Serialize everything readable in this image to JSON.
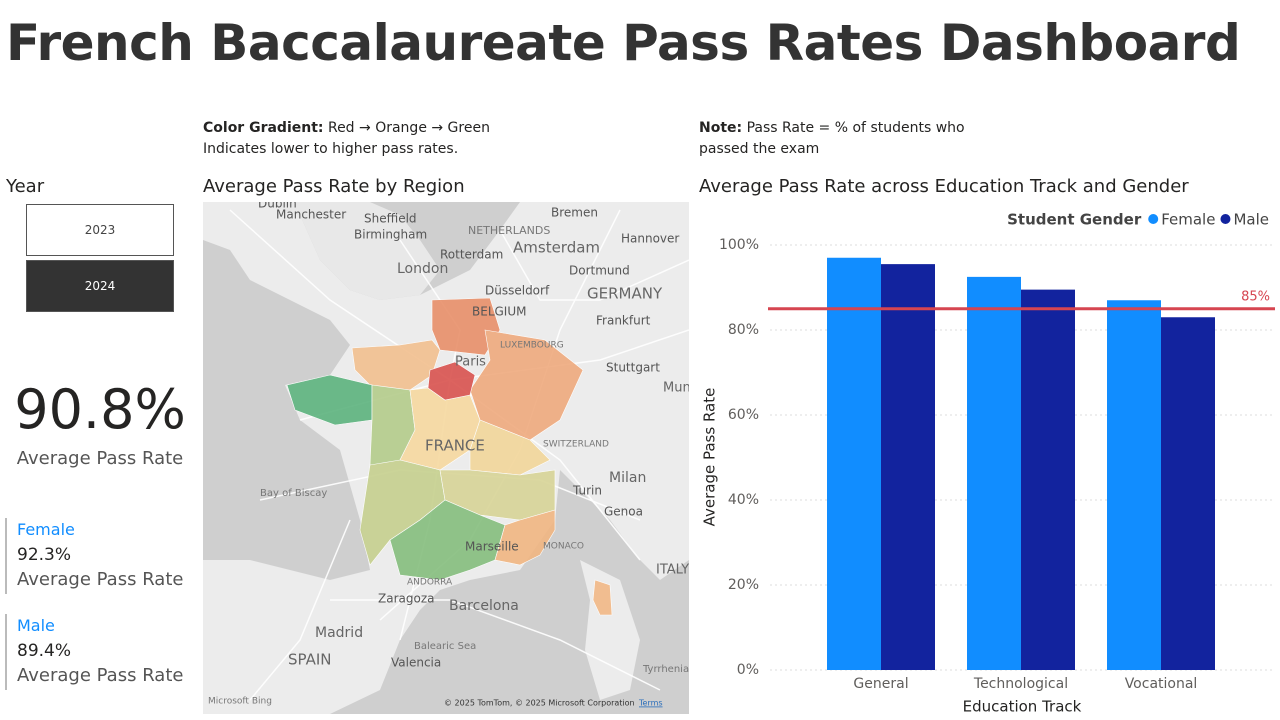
{
  "header": {
    "title": "French Baccalaureate Pass Rates Dashboard"
  },
  "notes": {
    "gradient_bold": "Color Gradient:",
    "gradient_text": "Red → Orange → Green",
    "gradient_line2": "Indicates lower to higher pass rates.",
    "note_bold": "Note:",
    "note_text": "Pass Rate = % of students who",
    "note_line2": "passed the exam"
  },
  "slicer": {
    "title": "Year",
    "options": [
      "2023",
      "2024"
    ]
  },
  "kpi": {
    "value": "90.8%",
    "label": "Average Pass Rate"
  },
  "gender_cards": [
    {
      "name": "Female",
      "value": "92.3%",
      "label": "Average Pass Rate"
    },
    {
      "name": "Male",
      "value": "89.4%",
      "label": "Average Pass Rate"
    }
  ],
  "map": {
    "title": "Average Pass Rate by Region",
    "labels": [
      "Dublin",
      "Manchester",
      "Sheffield",
      "Birmingham",
      "NETHERLANDS",
      "Amsterdam",
      "Rotterdam",
      "Bremen",
      "Hannover",
      "London",
      "Dortmund",
      "Düsseldorf",
      "GERMANY",
      "BELGIUM",
      "Frankfurt",
      "LUXEMBOURG",
      "Paris",
      "Stuttgart",
      "Mun",
      "FRANCE",
      "SWITZERLAND",
      "Milan",
      "Bay of Biscay",
      "Turin",
      "Genoa",
      "Marseille",
      "MONACO",
      "ITALY",
      "ANDORRA",
      "Zaragoza",
      "Barcelona",
      "Madrid",
      "Balearic Sea",
      "SPAIN",
      "Valencia",
      "Tyrrhenian",
      "Microsoft Bing",
      "© 2025 TomTom, © 2025 Microsoft Corporation",
      "Terms"
    ]
  },
  "chart_data": {
    "type": "bar",
    "title": "Average Pass Rate across Education Track and Gender",
    "legend_title": "Student Gender",
    "legend": "top-right",
    "x_label": "Education Track",
    "y_label": "Average Pass Rate",
    "categories": [
      "General",
      "Technological",
      "Vocational"
    ],
    "series": [
      {
        "name": "Female",
        "color": "#118DFF",
        "values": [
          97,
          92.5,
          87
        ]
      },
      {
        "name": "Male",
        "color": "#12239E",
        "values": [
          95.5,
          89.5,
          83
        ]
      }
    ],
    "ylim": [
      0,
      100
    ],
    "yticks": [
      {
        "value": 0,
        "label": "0%"
      },
      {
        "value": 20,
        "label": "20%"
      },
      {
        "value": 40,
        "label": "40%"
      },
      {
        "value": 60,
        "label": "60%"
      },
      {
        "value": 80,
        "label": "80%"
      },
      {
        "value": 100,
        "label": "100%"
      }
    ],
    "grid": true,
    "reference_line": {
      "value": 85,
      "label": "85%",
      "color": "#D64550"
    }
  }
}
